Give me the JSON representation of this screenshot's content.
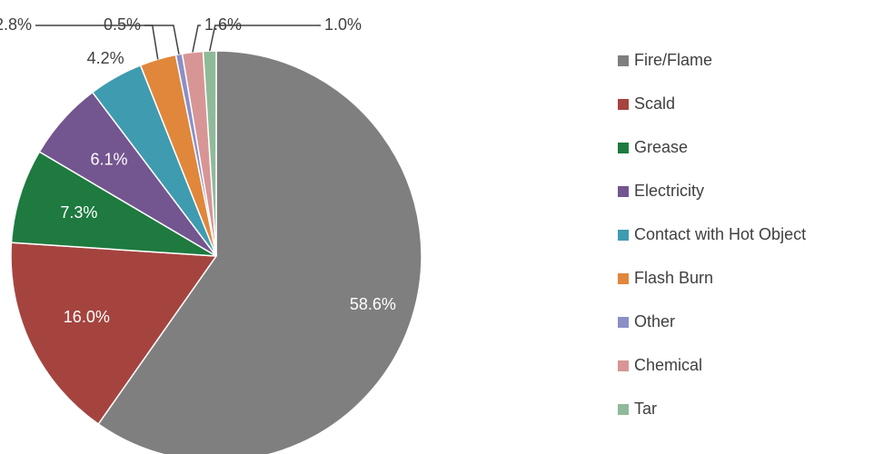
{
  "chart_data": {
    "type": "pie",
    "categories": [
      "Fire/Flame",
      "Scald",
      "Grease",
      "Electricity",
      "Contact with Hot Object",
      "Flash Burn",
      "Other",
      "Chemical",
      "Tar"
    ],
    "values": [
      58.6,
      16.0,
      7.3,
      6.1,
      4.2,
      2.8,
      0.5,
      1.6,
      1.0
    ],
    "value_labels": [
      "58.6%",
      "16.0%",
      "7.3%",
      "6.1%",
      "4.2%",
      "2.8%",
      "0.5%",
      "1.6%",
      "1.0%"
    ],
    "colors": [
      "#7f7f7f",
      "#a5443f",
      "#1e7a3f",
      "#73558f",
      "#3f9bb0",
      "#e0873c",
      "#8b8fc6",
      "#d89595",
      "#8fba9a"
    ],
    "legend": "right"
  }
}
